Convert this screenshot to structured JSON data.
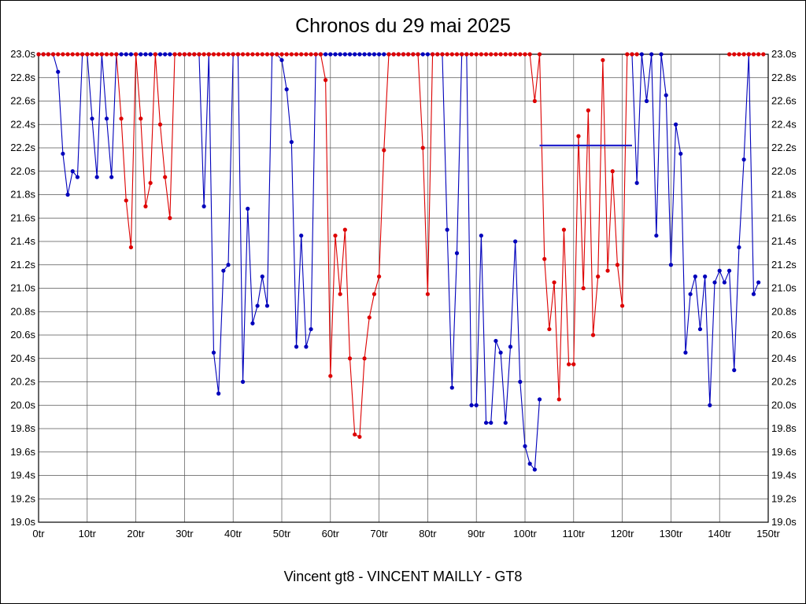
{
  "window": {
    "title": "Chronos du 29 mai 2025"
  },
  "chart_data": {
    "type": "line",
    "title": "Chronos du 29 mai 2025",
    "caption": "Vincent gt8 - VINCENT MAILLY - GT8",
    "x_unit": "tr",
    "y_unit": "s",
    "xlim": [
      0,
      150
    ],
    "ylim": [
      19.0,
      23.0
    ],
    "grid": true,
    "legend": "none",
    "x_tick_labels": [
      "0tr",
      "10tr",
      "20tr",
      "30tr",
      "40tr",
      "50tr",
      "60tr",
      "70tr",
      "80tr",
      "90tr",
      "100tr",
      "110tr",
      "120tr",
      "130tr",
      "140tr",
      "150tr"
    ],
    "y_tick_labels": [
      "23.0s",
      "22.8s",
      "22.6s",
      "22.4s",
      "22.2s",
      "22.0s",
      "21.8s",
      "21.6s",
      "21.4s",
      "21.2s",
      "21.0s",
      "20.8s",
      "20.6s",
      "20.4s",
      "20.2s",
      "20.0s",
      "19.8s",
      "19.6s",
      "19.4s",
      "19.2s",
      "19.0s"
    ],
    "clip_max_seconds": 23.0,
    "series": [
      {
        "name": "blue-driver-laps",
        "color": "#0000bb",
        "segments": [
          {
            "start_lap": 0,
            "values": [
              23,
              23,
              23,
              23,
              22.85,
              22.15,
              21.8,
              22,
              21.95,
              23,
              23,
              22.45,
              21.95,
              23,
              22.45,
              21.95,
              23,
              23,
              23,
              23,
              23,
              23,
              23,
              23,
              23,
              23,
              23,
              23,
              23,
              23,
              23,
              23,
              23,
              23,
              21.7,
              23,
              20.45,
              20.1,
              21.15,
              21.2,
              23,
              23,
              20.2,
              21.68,
              20.7,
              20.85,
              21.1,
              20.85,
              23,
              23,
              22.95,
              22.7,
              22.25,
              20.5,
              21.45,
              20.5,
              20.65,
              23,
              23,
              23,
              23,
              23,
              23,
              23,
              23,
              23,
              23,
              23,
              23,
              23,
              23,
              23,
              23,
              23,
              23,
              23,
              23,
              23,
              23,
              23,
              23,
              23,
              23,
              23,
              21.5,
              20.15,
              21.3,
              23,
              23,
              20,
              20,
              21.45,
              19.85,
              19.85,
              20.55,
              20.45,
              19.85,
              20.5,
              21.4,
              20.2,
              19.65,
              19.5,
              19.45,
              20.05
            ]
          },
          {
            "start_lap": 122,
            "values": [
              23,
              21.9,
              23,
              22.6,
              23,
              21.45,
              23,
              22.65,
              21.2,
              22.4,
              22.15,
              20.45,
              20.95,
              21.1,
              20.65,
              21.1,
              20,
              21.05,
              21.15,
              21.05,
              21.15,
              20.3,
              21.35,
              22.1,
              23,
              20.95,
              21.05
            ]
          }
        ]
      },
      {
        "name": "red-driver-laps",
        "color": "#dd0000",
        "segments": [
          {
            "start_lap": 0,
            "values": [
              23,
              23,
              23,
              23,
              23,
              23,
              23,
              23,
              23,
              23,
              23,
              23,
              23,
              23,
              23,
              23,
              23,
              22.45,
              21.75,
              21.35,
              23,
              22.45,
              21.7,
              21.9,
              23,
              22.4,
              21.95,
              21.6,
              23,
              23,
              23,
              23,
              23,
              23,
              23,
              23,
              23,
              23,
              23,
              23,
              23,
              23,
              23,
              23,
              23,
              23,
              23,
              23,
              23,
              23,
              23,
              23,
              23,
              23,
              23,
              23,
              23,
              23,
              23,
              22.78,
              20.25,
              21.45,
              20.95,
              21.5,
              20.4,
              19.75,
              19.73,
              20.4,
              20.75,
              20.95,
              21.1,
              22.18,
              23,
              23,
              23,
              23,
              23,
              23,
              23,
              22.2,
              20.95,
              23,
              23,
              23,
              23,
              23,
              23,
              23,
              23,
              23,
              23,
              23,
              23,
              23,
              23,
              23,
              23,
              23,
              23,
              23,
              23,
              23,
              22.6,
              23,
              21.25,
              20.65,
              21.05,
              20.05,
              21.5,
              20.35,
              20.35,
              22.3,
              21,
              22.52,
              20.6,
              21.1,
              22.95,
              21.15,
              22,
              21.2,
              20.85,
              23,
              23,
              23
            ]
          },
          {
            "start_lap": 142,
            "values": [
              23,
              23,
              23,
              23,
              23,
              23,
              23,
              23
            ]
          }
        ]
      }
    ],
    "extra_lines": [
      {
        "name": "blue-flat-segment",
        "y": 22.22,
        "x1": 103,
        "x2": 122,
        "color": "#2222cc",
        "width": 2.2
      }
    ]
  }
}
